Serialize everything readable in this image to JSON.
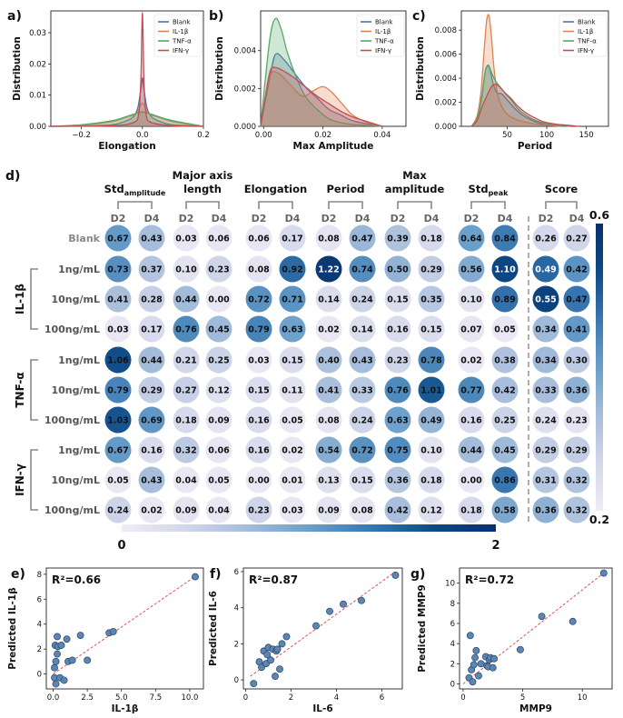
{
  "chart_data": [
    {
      "panel": "a)",
      "type": "area",
      "xlabel": "Elongation",
      "ylabel": "Distribution",
      "xlim": [
        -0.3,
        0.2
      ],
      "ylim": [
        0,
        0.037
      ],
      "xticks": [
        -0.2,
        0.0,
        0.2
      ],
      "xtick_labels": [
        "−0.2",
        "0.0",
        "0.2"
      ],
      "yticks": [
        0,
        0.01,
        0.02,
        0.03
      ],
      "ytick_labels": [
        "0.00",
        "0.01",
        "0.02",
        "0.03"
      ],
      "legend": "top-right",
      "series": [
        {
          "name": "Blank",
          "color": "#4c72b0",
          "x": [
            -0.3,
            -0.2,
            -0.1,
            -0.06,
            -0.03,
            -0.015,
            -0.005,
            0,
            0.005,
            0.015,
            0.03,
            0.06,
            0.1,
            0.2
          ],
          "values": [
            0,
            0.0001,
            0.0005,
            0.0015,
            0.003,
            0.006,
            0.012,
            0.0155,
            0.012,
            0.006,
            0.003,
            0.0015,
            0.0005,
            0
          ]
        },
        {
          "name": "IL-1β",
          "color": "#dd8452",
          "x": [
            -0.3,
            -0.2,
            -0.1,
            -0.05,
            -0.02,
            -0.01,
            0,
            0.01,
            0.02,
            0.05,
            0.1,
            0.2
          ],
          "values": [
            0,
            0.0004,
            0.0015,
            0.003,
            0.004,
            0.006,
            0.0075,
            0.006,
            0.004,
            0.003,
            0.0015,
            0
          ]
        },
        {
          "name": "TNF-α",
          "color": "#55a868",
          "x": [
            -0.3,
            -0.2,
            -0.1,
            -0.05,
            -0.02,
            0,
            0.02,
            0.05,
            0.1,
            0.2
          ],
          "values": [
            0,
            0.0005,
            0.0018,
            0.0032,
            0.0042,
            0.0046,
            0.0042,
            0.0032,
            0.0018,
            0
          ]
        },
        {
          "name": "IFN-γ",
          "color": "#c44e52",
          "x": [
            -0.3,
            -0.1,
            -0.03,
            -0.012,
            -0.005,
            -0.002,
            0,
            0.002,
            0.005,
            0.012,
            0.03,
            0.1,
            0.2
          ],
          "values": [
            0,
            0.0002,
            0.0012,
            0.004,
            0.015,
            0.03,
            0.0365,
            0.03,
            0.015,
            0.004,
            0.0012,
            0.0002,
            0
          ]
        }
      ]
    },
    {
      "panel": "b)",
      "type": "area",
      "xlabel": "Max Amplitude",
      "ylabel": "Distribution",
      "xlim": [
        -0.001,
        0.048
      ],
      "ylim": [
        0,
        0.0061
      ],
      "xticks": [
        0,
        0.02,
        0.04
      ],
      "xtick_labels": [
        "0.00",
        "0.02",
        "0.04"
      ],
      "yticks": [
        0,
        0.002,
        0.004
      ],
      "ytick_labels": [
        "0.000",
        "0.002",
        "0.004"
      ],
      "legend": "top-right",
      "series": [
        {
          "name": "Blank",
          "color": "#4c72b0",
          "x": [
            -0.001,
            0.002,
            0.004,
            0.007,
            0.01,
            0.014,
            0.018,
            0.022,
            0.026,
            0.03,
            0.036,
            0.04
          ],
          "values": [
            0,
            0.0025,
            0.0038,
            0.0035,
            0.0029,
            0.0021,
            0.0015,
            0.0009,
            0.0006,
            0.0003,
            0.0001,
            0
          ]
        },
        {
          "name": "IL-1β",
          "color": "#dd8452",
          "x": [
            -0.001,
            0.002,
            0.005,
            0.009,
            0.013,
            0.017,
            0.02,
            0.023,
            0.027,
            0.03,
            0.035,
            0.04
          ],
          "values": [
            0,
            0.0026,
            0.0028,
            0.0022,
            0.0016,
            0.0019,
            0.0021,
            0.0018,
            0.0011,
            0.0006,
            0.0002,
            0
          ]
        },
        {
          "name": "TNF-α",
          "color": "#55a868",
          "x": [
            -0.001,
            0.002,
            0.004,
            0.006,
            0.008,
            0.011,
            0.014,
            0.018,
            0.022,
            0.026,
            0.03,
            0.04
          ],
          "values": [
            0,
            0.0045,
            0.0057,
            0.0051,
            0.0039,
            0.0026,
            0.0016,
            0.0009,
            0.0004,
            0.0002,
            0.0001,
            0
          ]
        },
        {
          "name": "IFN-γ",
          "color": "#c44e52",
          "x": [
            -0.001,
            0.002,
            0.004,
            0.007,
            0.01,
            0.014,
            0.018,
            0.022,
            0.026,
            0.03,
            0.036,
            0.04
          ],
          "values": [
            0,
            0.0028,
            0.0031,
            0.0029,
            0.0026,
            0.0021,
            0.0016,
            0.0012,
            0.0008,
            0.0005,
            0.0002,
            0
          ]
        }
      ]
    },
    {
      "panel": "c)",
      "type": "area",
      "xlabel": "Period",
      "ylabel": "Distribution",
      "xlim": [
        -8,
        178
      ],
      "ylim": [
        0,
        0.0096
      ],
      "xticks": [
        50,
        100,
        150
      ],
      "xtick_labels": [
        "50",
        "100",
        "150"
      ],
      "yticks": [
        0,
        0.002,
        0.004,
        0.006,
        0.008
      ],
      "ytick_labels": [
        "0.000",
        "0.002",
        "0.004",
        "0.006",
        "0.008"
      ],
      "legend": "top-right",
      "series": [
        {
          "name": "Blank",
          "color": "#4c72b0",
          "x": [
            5,
            12,
            18,
            22,
            25,
            28,
            32,
            37,
            43,
            50,
            58,
            66,
            75,
            85,
            100,
            120
          ],
          "values": [
            0,
            0.0008,
            0.0026,
            0.0045,
            0.005,
            0.0048,
            0.0036,
            0.0028,
            0.0027,
            0.0022,
            0.0016,
            0.0011,
            0.0007,
            0.0004,
            0.0001,
            0
          ]
        },
        {
          "name": "IL-1β",
          "color": "#dd8452",
          "x": [
            5,
            12,
            17,
            21,
            24,
            27,
            30,
            33,
            37,
            42,
            50,
            60,
            70,
            85,
            100,
            120
          ],
          "values": [
            0,
            0.0009,
            0.003,
            0.0065,
            0.0088,
            0.0092,
            0.0075,
            0.005,
            0.003,
            0.0018,
            0.001,
            0.0006,
            0.0004,
            0.0002,
            0.0001,
            0
          ]
        },
        {
          "name": "TNF-α",
          "color": "#55a868",
          "x": [
            5,
            12,
            18,
            22,
            26,
            30,
            35,
            42,
            48,
            55,
            63,
            72,
            82,
            95,
            110,
            130
          ],
          "values": [
            0,
            0.0007,
            0.0024,
            0.0045,
            0.0051,
            0.0045,
            0.0038,
            0.0032,
            0.0027,
            0.0022,
            0.0015,
            0.001,
            0.0006,
            0.0003,
            0.0001,
            0
          ]
        },
        {
          "name": "IFN-γ",
          "color": "#c44e52",
          "x": [
            5,
            12,
            18,
            24,
            30,
            35,
            40,
            47,
            55,
            63,
            72,
            82,
            95,
            110,
            125,
            140
          ],
          "values": [
            0,
            0.0005,
            0.0016,
            0.0025,
            0.0033,
            0.0035,
            0.0033,
            0.0028,
            0.0023,
            0.0017,
            0.0012,
            0.0008,
            0.0004,
            0.0002,
            0.0001,
            0
          ]
        }
      ]
    },
    {
      "panel": "d)",
      "type": "heatmap",
      "metrics": [
        {
          "lines": [
            "Std",
            "amplitude"
          ],
          "subscript": true
        },
        {
          "lines": [
            "Major axis",
            "length"
          ],
          "subscript": false
        },
        {
          "lines": [
            "Elongation"
          ],
          "subscript": false
        },
        {
          "lines": [
            "Period"
          ],
          "subscript": false
        },
        {
          "lines": [
            "Max",
            "amplitude"
          ],
          "subscript": false
        },
        {
          "lines": [
            "Std",
            "peak"
          ],
          "subscript": true
        },
        {
          "lines": [
            "Score"
          ],
          "subscript": false
        }
      ],
      "day_labels": [
        "D2",
        "D4"
      ],
      "groups": [
        {
          "name": "",
          "rows": 1
        },
        {
          "name": "IL-1β",
          "rows": 3
        },
        {
          "name": "TNF-α",
          "rows": 3
        },
        {
          "name": "IFN-γ",
          "rows": 3
        }
      ],
      "row_labels": [
        "Blank",
        "1ng/mL",
        "10ng/mL",
        "100ng/mL",
        "1ng/mL",
        "10ng/mL",
        "100ng/mL",
        "1ng/mL",
        "10ng/mL",
        "100ng/mL"
      ],
      "values": [
        [
          "0.67",
          "0.43",
          "0.03",
          "0.06",
          "0.06",
          "0.17",
          "0.08",
          "0.47",
          "0.39",
          "0.18",
          "0.64",
          "0.84",
          "0.26",
          "0.27"
        ],
        [
          "0.73",
          "0.37",
          "0.10",
          "0.23",
          "0.08",
          "0.92",
          "1.22",
          "0.74",
          "0.50",
          "0.29",
          "0.56",
          "1.10",
          "0.49",
          "0.42"
        ],
        [
          "0.41",
          "0.28",
          "0.44",
          "0.00",
          "0.72",
          "0.71",
          "0.14",
          "0.24",
          "0.15",
          "0.35",
          "0.10",
          "0.89",
          "0.55",
          "0.47"
        ],
        [
          "0.03",
          "0.17",
          "0.76",
          "0.45",
          "0.79",
          "0.63",
          "0.02",
          "0.14",
          "0.16",
          "0.15",
          "0.07",
          "0.05",
          "0.34",
          "0.41"
        ],
        [
          "1.06",
          "0.44",
          "0.21",
          "0.25",
          "0.03",
          "0.15",
          "0.40",
          "0.43",
          "0.23",
          "0.78",
          "0.02",
          "0.38",
          "0.34",
          "0.30"
        ],
        [
          "0.79",
          "0.29",
          "0.27",
          "0.12",
          "0.15",
          "0.11",
          "0.41",
          "0.33",
          "0.76",
          "1.01",
          "0.77",
          "0.42",
          "0.33",
          "0.36"
        ],
        [
          "1.03",
          "0.69",
          "0.18",
          "0.09",
          "0.16",
          "0.05",
          "0.08",
          "0.24",
          "0.63",
          "0.49",
          "0.16",
          "0.25",
          "0.24",
          "0.23"
        ],
        [
          "0.67",
          "0.16",
          "0.32",
          "0.06",
          "0.16",
          "0.02",
          "0.54",
          "0.72",
          "0.75",
          "0.10",
          "0.44",
          "0.45",
          "0.29",
          "0.29"
        ],
        [
          "0.05",
          "0.43",
          "0.04",
          "0.05",
          "0.00",
          "0.01",
          "0.13",
          "0.15",
          "0.36",
          "0.18",
          "0.00",
          "0.86",
          "0.31",
          "0.32"
        ],
        [
          "0.24",
          "0.02",
          "0.09",
          "0.04",
          "0.23",
          "0.03",
          "0.09",
          "0.08",
          "0.42",
          "0.12",
          "0.18",
          "0.58",
          "0.36",
          "0.32"
        ]
      ],
      "main_colorbar": {
        "min": 0,
        "max": 2,
        "min_label": "0",
        "max_label": "2",
        "orientation": "horizontal"
      },
      "score_colorbar": {
        "min": 0.2,
        "max": 0.6,
        "min_label": "0.2",
        "max_label": "0.6",
        "orientation": "vertical"
      },
      "colormap": [
        "#f0ecf6",
        "#d2d7ea",
        "#a6bddb",
        "#6a9fca",
        "#3877b1",
        "#0d4a86",
        "#08306b"
      ]
    },
    {
      "panel": "e)",
      "type": "scatter",
      "annotation": "R²=0.66",
      "xlabel": "IL-1β",
      "ylabel": "Predicted IL-1β",
      "xlim": [
        -0.5,
        11
      ],
      "ylim": [
        -1.2,
        8.5
      ],
      "xticks": [
        0,
        2.5,
        5,
        7.5,
        10
      ],
      "xtick_labels": [
        "0.0",
        "2.5",
        "5.0",
        "7.5",
        "10.0"
      ],
      "yticks": [
        0,
        2,
        4,
        6,
        8
      ],
      "ytick_labels": [
        "0",
        "2",
        "4",
        "6",
        "8"
      ],
      "points": [
        [
          0.1,
          -0.3
        ],
        [
          0.1,
          0.5
        ],
        [
          0.15,
          2.3
        ],
        [
          0.2,
          1.0
        ],
        [
          0.2,
          -0.8
        ],
        [
          0.3,
          3.0
        ],
        [
          0.3,
          1.6
        ],
        [
          0.35,
          2.2
        ],
        [
          0.5,
          -0.3
        ],
        [
          0.6,
          2.3
        ],
        [
          0.8,
          -0.5
        ],
        [
          1.0,
          2.8
        ],
        [
          1.1,
          1.0
        ],
        [
          1.4,
          1.1
        ],
        [
          2.0,
          3.1
        ],
        [
          2.5,
          1.1
        ],
        [
          4.1,
          3.3
        ],
        [
          4.4,
          3.4
        ],
        [
          10.4,
          7.8
        ]
      ],
      "fit_line": [
        [
          0,
          0
        ],
        [
          10.5,
          7.9
        ]
      ]
    },
    {
      "panel": "f)",
      "type": "scatter",
      "annotation": "R²=0.87",
      "xlabel": "IL-6",
      "ylabel": "Predicted IL-6",
      "xlim": [
        -0.1,
        6.9
      ],
      "ylim": [
        -0.5,
        6.2
      ],
      "xticks": [
        0,
        2,
        4,
        6
      ],
      "xtick_labels": [
        "0",
        "2",
        "4",
        "6"
      ],
      "yticks": [
        0,
        2,
        4,
        6
      ],
      "ytick_labels": [
        "0",
        "2",
        "4",
        "6"
      ],
      "points": [
        [
          0.35,
          -0.2
        ],
        [
          0.6,
          1.0
        ],
        [
          0.7,
          0.7
        ],
        [
          0.8,
          1.6
        ],
        [
          0.9,
          0.9
        ],
        [
          0.95,
          1.4
        ],
        [
          1.0,
          1.8
        ],
        [
          1.1,
          1.1
        ],
        [
          1.2,
          1.7
        ],
        [
          1.3,
          0.2
        ],
        [
          1.35,
          1.6
        ],
        [
          1.4,
          1.7
        ],
        [
          1.5,
          0.6
        ],
        [
          1.6,
          2.0
        ],
        [
          1.8,
          2.4
        ],
        [
          3.1,
          3.0
        ],
        [
          3.7,
          3.8
        ],
        [
          4.3,
          4.2
        ],
        [
          5.1,
          4.4
        ],
        [
          6.6,
          5.8
        ]
      ],
      "fit_line": [
        [
          0.2,
          0.2
        ],
        [
          6.6,
          6.0
        ]
      ]
    },
    {
      "panel": "g)",
      "type": "scatter",
      "annotation": "R²=0.72",
      "xlabel": "MMP9",
      "ylabel": "Predicted MMP9",
      "xlim": [
        -0.3,
        12.5
      ],
      "ylim": [
        -0.5,
        11.5
      ],
      "xticks": [
        0,
        5,
        10
      ],
      "xtick_labels": [
        "0",
        "5",
        "10"
      ],
      "yticks": [
        0,
        2,
        4,
        6,
        8,
        10
      ],
      "ytick_labels": [
        "0",
        "2",
        "4",
        "6",
        "8",
        "10"
      ],
      "points": [
        [
          0.5,
          0.6
        ],
        [
          0.6,
          4.8
        ],
        [
          0.7,
          1.4
        ],
        [
          0.8,
          0.2
        ],
        [
          0.9,
          1.9
        ],
        [
          1.0,
          2.6
        ],
        [
          1.1,
          3.3
        ],
        [
          1.3,
          0.8
        ],
        [
          1.5,
          2.0
        ],
        [
          1.9,
          2.7
        ],
        [
          2.0,
          1.8
        ],
        [
          2.1,
          1.7
        ],
        [
          2.2,
          2.4
        ],
        [
          2.3,
          2.6
        ],
        [
          2.5,
          1.6
        ],
        [
          2.6,
          2.5
        ],
        [
          4.8,
          3.4
        ],
        [
          6.6,
          6.7
        ],
        [
          9.2,
          6.2
        ],
        [
          11.8,
          11.0
        ]
      ],
      "fit_line": [
        [
          0,
          0
        ],
        [
          11.9,
          11.1
        ]
      ]
    }
  ]
}
